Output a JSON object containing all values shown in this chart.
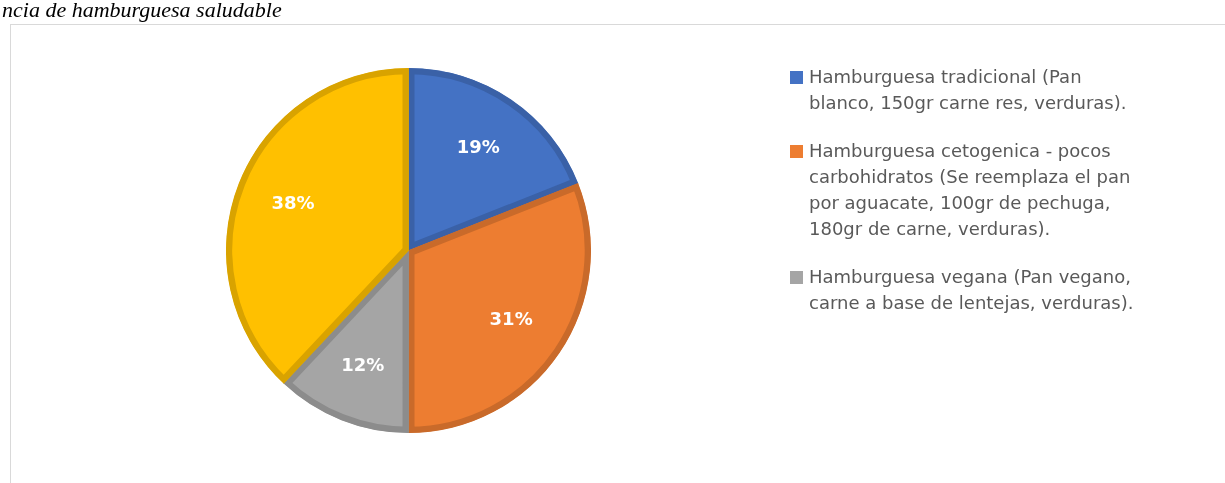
{
  "chart_data": {
    "type": "pie",
    "title": "ncia de hamburguesa saludable",
    "categories": [
      "Hamburguesa tradicional (Pan blanco, 150gr carne res, verduras).",
      "Hamburguesa cetogenica - pocos carbohidratos (Se reemplaza el pan por aguacate, 100gr de pechuga, 180gr de carne, verduras).",
      "Hamburguesa vegana (Pan vegano, carne a base de lentejas, verduras).",
      null
    ],
    "values": [
      19,
      31,
      12,
      38
    ],
    "colors": [
      "#4472c4",
      "#ed7d31",
      "#a5a5a5",
      "#ffc000"
    ],
    "value_labels": [
      "19%",
      "31%",
      "12%",
      "38%"
    ],
    "legend": "right"
  }
}
